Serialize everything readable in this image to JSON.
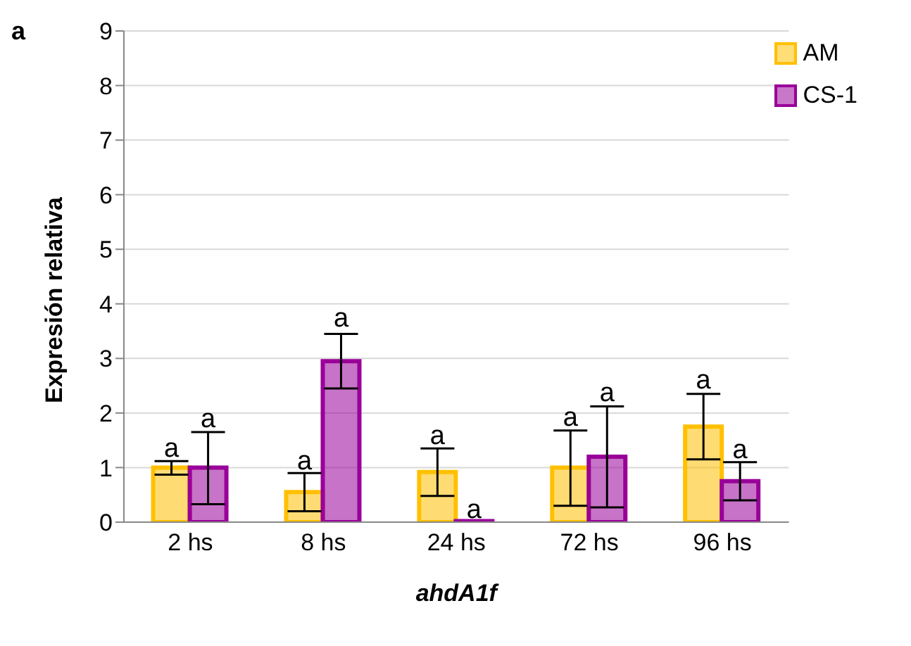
{
  "chart_data": {
    "type": "bar",
    "xlabel": "ahdA1f",
    "ylabel": "Expresión relativa",
    "annotations": [
      "a"
    ],
    "categories": [
      "2 hs",
      "8 hs",
      "24 hs",
      "72 hs",
      "96 hs"
    ],
    "series": [
      {
        "name": "AM",
        "color": "#ffc000",
        "values": [
          1.0,
          0.55,
          0.92,
          1.0,
          1.75
        ],
        "errors": [
          [
            0.87,
            1.12
          ],
          [
            0.2,
            0.9
          ],
          [
            0.48,
            1.35
          ],
          [
            0.3,
            1.68
          ],
          [
            1.15,
            2.35
          ]
        ],
        "value_labels": [
          "a",
          "a",
          "a",
          "a",
          "a"
        ]
      },
      {
        "name": "CS-1",
        "color": "#990099",
        "values": [
          1.0,
          2.95,
          0.02,
          1.2,
          0.75
        ],
        "errors": [
          [
            0.33,
            1.65
          ],
          [
            2.45,
            3.45
          ],
          null,
          [
            0.27,
            2.12
          ],
          [
            0.4,
            1.1
          ]
        ],
        "value_labels": [
          "a",
          "a",
          "a",
          "a",
          "a"
        ]
      }
    ],
    "ylim": [
      0,
      9
    ],
    "yticks": [
      0,
      1,
      2,
      3,
      4,
      5,
      6,
      7,
      8,
      9
    ],
    "grid": "y",
    "legend": "top right"
  }
}
